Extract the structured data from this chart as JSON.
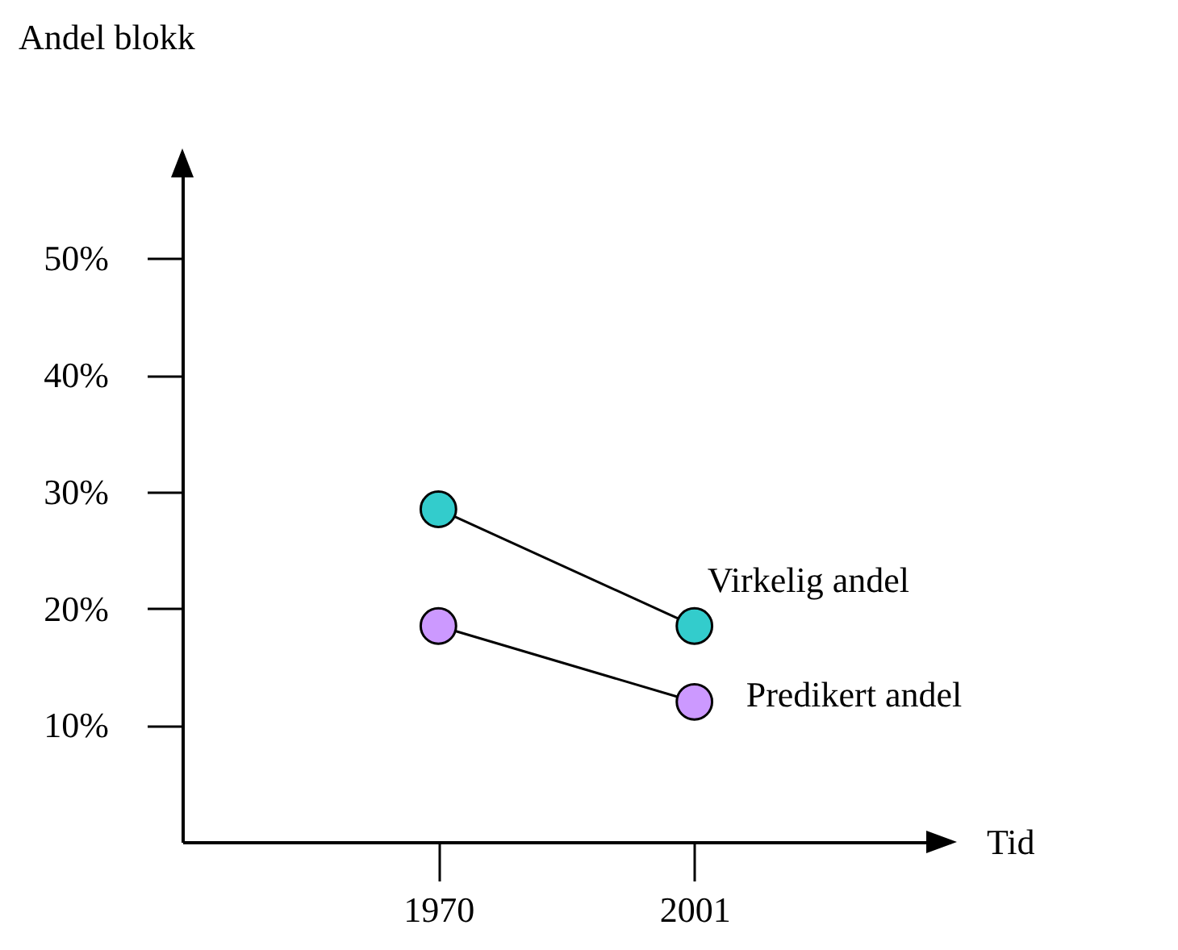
{
  "chart_data": {
    "type": "line",
    "ylabel": "Andel blokk",
    "xlabel": "Tid",
    "categories": [
      "1970",
      "2001"
    ],
    "series": [
      {
        "name": "Virkelig andel",
        "color": "#33cccc",
        "values": [
          28.5,
          18.5
        ]
      },
      {
        "name": "Predikert andel",
        "color": "#cc99ff",
        "values": [
          18.5,
          12
        ]
      }
    ],
    "ylim": [
      0,
      59
    ],
    "yticks": [
      {
        "value": 10,
        "label": "10%"
      },
      {
        "value": 20,
        "label": "20%"
      },
      {
        "value": 30,
        "label": "30%"
      },
      {
        "value": 40,
        "label": "40%"
      },
      {
        "value": 50,
        "label": "50%"
      }
    ],
    "grid": false,
    "marker": "circle",
    "line_style": "solid"
  }
}
